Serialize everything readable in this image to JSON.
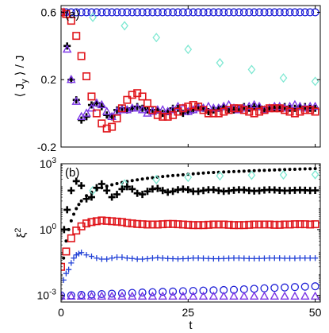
{
  "chart_data": [
    {
      "type": "scatter",
      "panel_label": "(a)",
      "xlim": [
        0,
        51
      ],
      "ylim": [
        -0.2,
        0.64
      ],
      "ylabel": "⟨ J_y ⟩ / J",
      "xlabel": "",
      "yticks": [
        -0.2,
        0.2,
        0.6
      ],
      "ytick_labels": [
        "-0.2",
        "0.2",
        "0.6"
      ],
      "xticks": [
        0,
        25,
        50
      ],
      "show_xtick_labels": false,
      "grid": false,
      "series": [
        {
          "marker": "circle",
          "color": "#1f1fd6",
          "x": [
            0,
            1,
            2,
            3,
            4,
            5,
            6,
            7,
            8,
            9,
            10,
            11,
            12,
            13,
            14,
            15,
            16,
            17,
            18,
            19,
            20,
            21,
            22,
            23,
            24,
            25,
            26,
            27,
            28,
            29,
            30,
            31,
            32,
            33,
            34,
            35,
            36,
            37,
            38,
            39,
            40,
            41,
            42,
            43,
            44,
            45,
            46,
            47,
            48,
            49,
            50
          ],
          "y": [
            0.6,
            0.6,
            0.6,
            0.6,
            0.6,
            0.6,
            0.6,
            0.6,
            0.6,
            0.6,
            0.6,
            0.6,
            0.6,
            0.6,
            0.6,
            0.6,
            0.6,
            0.6,
            0.6,
            0.6,
            0.6,
            0.6,
            0.6,
            0.6,
            0.6,
            0.6,
            0.6,
            0.6,
            0.6,
            0.6,
            0.6,
            0.6,
            0.6,
            0.6,
            0.6,
            0.6,
            0.6,
            0.6,
            0.6,
            0.6,
            0.6,
            0.6,
            0.6,
            0.6,
            0.6,
            0.6,
            0.6,
            0.6,
            0.6,
            0.6,
            0.6
          ]
        },
        {
          "marker": "diamond",
          "color": "#7ee8d2",
          "x": [
            0,
            6.25,
            12.5,
            18.75,
            25,
            31.25,
            37.5,
            43.75,
            50
          ],
          "y": [
            0.6,
            0.57,
            0.52,
            0.45,
            0.38,
            0.3,
            0.26,
            0.21,
            0.19
          ]
        },
        {
          "marker": "plus-bold",
          "color": "#000000",
          "x": [
            0.6,
            1.2,
            2,
            3,
            4,
            5,
            6,
            7,
            8,
            9,
            10,
            11,
            12,
            13,
            14,
            15,
            16,
            17,
            18,
            19,
            20,
            21,
            22,
            23,
            24,
            25,
            26,
            27,
            28,
            29,
            30,
            31,
            32,
            33,
            34,
            35,
            36,
            37,
            38,
            39,
            40,
            41,
            42,
            43,
            44,
            45,
            46,
            47,
            48,
            49,
            50
          ],
          "y": [
            0.6,
            0.4,
            0.2,
            0.08,
            -0.04,
            -0.02,
            0.05,
            0.06,
            0.04,
            -0.01,
            -0.02,
            0.02,
            0.03,
            0.02,
            0.03,
            0.04,
            0.03,
            0.02,
            0.02,
            0.02,
            0.0,
            0.01,
            0.03,
            0.03,
            0.0,
            0.01,
            0.02,
            0.04,
            0.03,
            0.01,
            0.02,
            0.03,
            0.04,
            0.02,
            0.02,
            0.03,
            0.04,
            0.03,
            0.04,
            0.04,
            0.02,
            0.03,
            0.03,
            0.03,
            0.04,
            0.03,
            0.03,
            0.04,
            0.04,
            0.03,
            0.03
          ]
        },
        {
          "marker": "triangle",
          "color": "#7b35e6",
          "x": [
            0.6,
            1.2,
            2,
            3,
            4,
            5,
            6,
            7,
            8,
            9,
            10,
            11,
            12,
            13,
            14,
            15,
            16,
            17,
            18,
            19,
            20,
            21,
            22,
            23,
            24,
            25,
            26,
            27,
            28,
            29,
            30,
            31,
            32,
            33,
            34,
            35,
            36,
            37,
            38,
            39,
            40,
            41,
            42,
            43,
            44,
            45,
            46,
            47,
            48,
            49,
            50
          ],
          "y": [
            0.6,
            0.38,
            0.2,
            0.07,
            -0.02,
            0.0,
            0.03,
            0.06,
            0.05,
            0.01,
            -0.02,
            0.01,
            0.02,
            0.02,
            0.03,
            0.03,
            0.02,
            0.0,
            0.01,
            0.02,
            0.02,
            0.01,
            0.02,
            0.04,
            0.03,
            0.01,
            0.02,
            0.03,
            0.03,
            0.04,
            0.03,
            0.03,
            0.04,
            0.05,
            0.03,
            0.02,
            0.03,
            0.04,
            0.05,
            0.04,
            0.02,
            0.03,
            0.04,
            0.04,
            0.03,
            0.04,
            0.05,
            0.04,
            0.03,
            0.04,
            0.04
          ]
        },
        {
          "marker": "square",
          "color": "#e0151b",
          "x": [
            0,
            1,
            2,
            3,
            4,
            5,
            6,
            7,
            8,
            9,
            10,
            11,
            12,
            13,
            14,
            15,
            16,
            17,
            18,
            19,
            20,
            21,
            22,
            23,
            24,
            25,
            26,
            27,
            28,
            29,
            30,
            31,
            32,
            33,
            34,
            35,
            36,
            37,
            38,
            39,
            40,
            41,
            42,
            43,
            44,
            45,
            46,
            47,
            48,
            49,
            50
          ],
          "y": [
            0.6,
            0.59,
            0.55,
            0.46,
            0.34,
            0.22,
            0.1,
            0.0,
            -0.06,
            -0.09,
            -0.08,
            -0.03,
            0.03,
            0.08,
            0.11,
            0.12,
            0.1,
            0.06,
            0.02,
            -0.01,
            -0.02,
            -0.02,
            -0.01,
            0.01,
            0.03,
            0.04,
            0.05,
            0.04,
            0.02,
            0.0,
            0.0,
            0.0,
            0.01,
            0.02,
            0.03,
            0.03,
            0.02,
            0.01,
            0.0,
            0.01,
            0.02,
            0.03,
            0.03,
            0.03,
            0.02,
            0.01,
            0.0,
            0.01,
            0.02,
            0.02,
            0.01
          ]
        }
      ]
    },
    {
      "type": "scatter",
      "panel_label": "(b)",
      "xlim": [
        0,
        51
      ],
      "yscale": "log",
      "ylim": [
        0.0005,
        1000
      ],
      "ylabel": "ξ²",
      "xlabel": "t",
      "yticks": [
        0.001,
        1,
        1000
      ],
      "ytick_labels": [
        "10^-3",
        "10^0",
        "10^3"
      ],
      "xticks": [
        0,
        25,
        50
      ],
      "xtick_labels": [
        "0",
        "25",
        "50"
      ],
      "grid": false,
      "series": [
        {
          "marker": "dot",
          "color": "#000000",
          "x": [
            0.5,
            1,
            1.5,
            2,
            2.5,
            3,
            3.5,
            4,
            5,
            6,
            7,
            8,
            9,
            10,
            11,
            12,
            13,
            14,
            15,
            16,
            17,
            18,
            19,
            20,
            21,
            22,
            23,
            24,
            25,
            26,
            27,
            28,
            29,
            30,
            31,
            32,
            33,
            34,
            35,
            36,
            37,
            38,
            39,
            40,
            41,
            42,
            43,
            44,
            45,
            46,
            47,
            48,
            49,
            50
          ],
          "y": [
            0.05,
            0.3,
            1.0,
            2.5,
            5,
            9,
            14,
            20,
            35,
            50,
            65,
            80,
            95,
            110,
            125,
            140,
            155,
            170,
            185,
            200,
            215,
            230,
            245,
            260,
            275,
            290,
            300,
            315,
            330,
            345,
            360,
            375,
            390,
            400,
            410,
            420,
            430,
            440,
            450,
            460,
            470,
            480,
            490,
            500,
            510,
            520,
            530,
            540,
            550,
            560,
            570,
            580,
            590,
            600
          ]
        },
        {
          "marker": "diamond",
          "color": "#7ee8d2",
          "x": [
            6.25,
            12.5,
            18.75,
            25,
            31.25,
            37.5,
            43.75,
            50
          ],
          "y": [
            60,
            120,
            190,
            240,
            280,
            300,
            310,
            320
          ]
        },
        {
          "marker": "plus-bold",
          "color": "#000000",
          "x": [
            0.6,
            1.2,
            2,
            3,
            4,
            5,
            6,
            7,
            8,
            9,
            10,
            11,
            12,
            13,
            14,
            15,
            16,
            17,
            18,
            19,
            20,
            21,
            22,
            23,
            24,
            25,
            26,
            27,
            28,
            29,
            30,
            31,
            32,
            33,
            34,
            35,
            36,
            37,
            38,
            39,
            40,
            41,
            42,
            43,
            44,
            45,
            46,
            47,
            48,
            49,
            50
          ],
          "y": [
            1.0,
            8,
            60,
            160,
            100,
            25,
            30,
            80,
            120,
            60,
            30,
            40,
            70,
            90,
            70,
            45,
            40,
            55,
            70,
            75,
            60,
            50,
            55,
            65,
            70,
            65,
            55,
            55,
            60,
            65,
            65,
            60,
            55,
            58,
            62,
            65,
            64,
            60,
            57,
            59,
            63,
            65,
            64,
            61,
            59,
            60,
            62,
            63,
            62,
            60,
            61
          ]
        },
        {
          "marker": "square",
          "color": "#e0151b",
          "x": [
            0,
            1,
            2,
            3,
            4,
            5,
            6,
            7,
            8,
            9,
            10,
            11,
            12,
            13,
            14,
            15,
            16,
            17,
            18,
            19,
            20,
            21,
            22,
            23,
            24,
            25,
            26,
            27,
            28,
            29,
            30,
            31,
            32,
            33,
            34,
            35,
            36,
            37,
            38,
            39,
            40,
            41,
            42,
            43,
            44,
            45,
            46,
            47,
            48,
            49,
            50
          ],
          "y": [
            0.02,
            0.1,
            0.4,
            0.9,
            1.4,
            1.9,
            2.2,
            2.4,
            2.6,
            2.5,
            2.4,
            2.3,
            2.2,
            2.0,
            1.9,
            1.8,
            1.75,
            1.7,
            1.7,
            1.7,
            1.75,
            1.8,
            1.8,
            1.75,
            1.7,
            1.65,
            1.6,
            1.6,
            1.6,
            1.65,
            1.7,
            1.7,
            1.7,
            1.65,
            1.6,
            1.6,
            1.6,
            1.65,
            1.7,
            1.7,
            1.7,
            1.7,
            1.65,
            1.65,
            1.7,
            1.7,
            1.75,
            1.75,
            1.75,
            1.7,
            1.75
          ]
        },
        {
          "marker": "plus",
          "color": "#1f3fd6",
          "x": [
            0.5,
            1,
            1.5,
            2,
            2.5,
            3,
            3.5,
            4,
            5,
            6,
            7,
            8,
            9,
            10,
            11,
            12,
            13,
            14,
            15,
            16,
            17,
            18,
            19,
            20,
            21,
            22,
            23,
            24,
            25,
            26,
            27,
            28,
            29,
            30,
            31,
            32,
            33,
            34,
            35,
            36,
            37,
            38,
            39,
            40,
            41,
            42,
            43,
            44,
            45,
            46,
            47,
            48,
            49,
            50
          ],
          "y": [
            0.005,
            0.01,
            0.015,
            0.03,
            0.05,
            0.07,
            0.08,
            0.09,
            0.07,
            0.06,
            0.05,
            0.045,
            0.045,
            0.05,
            0.055,
            0.055,
            0.05,
            0.048,
            0.045,
            0.045,
            0.047,
            0.05,
            0.052,
            0.05,
            0.048,
            0.047,
            0.046,
            0.047,
            0.048,
            0.05,
            0.05,
            0.049,
            0.048,
            0.047,
            0.047,
            0.048,
            0.049,
            0.05,
            0.05,
            0.049,
            0.048,
            0.048,
            0.048,
            0.049,
            0.05,
            0.05,
            0.05,
            0.049,
            0.049,
            0.049,
            0.05,
            0.05,
            0.05,
            0.05
          ]
        },
        {
          "marker": "circle",
          "color": "#1f1fd6",
          "x": [
            0,
            2,
            4,
            6,
            8,
            10,
            12,
            14,
            16,
            18,
            20,
            22,
            24,
            26,
            28,
            30,
            32,
            34,
            36,
            38,
            40,
            42,
            44,
            46,
            48,
            50
          ],
          "y": [
            0.001,
            0.001,
            0.00105,
            0.0011,
            0.00115,
            0.0012,
            0.00125,
            0.0013,
            0.00135,
            0.0014,
            0.00145,
            0.0015,
            0.00155,
            0.0016,
            0.00165,
            0.0017,
            0.00175,
            0.0018,
            0.0019,
            0.002,
            0.0021,
            0.0022,
            0.0023,
            0.0024,
            0.0025,
            0.0026
          ]
        },
        {
          "marker": "triangle",
          "color": "#7b35e6",
          "x": [
            0,
            2,
            4,
            6,
            8,
            10,
            12,
            14,
            16,
            18,
            20,
            22,
            24,
            26,
            28,
            30,
            32,
            34,
            36,
            38,
            40,
            42,
            44,
            46,
            48,
            50
          ],
          "y": [
            0.0009,
            0.0009,
            0.0009,
            0.0009,
            0.0009,
            0.0009,
            0.0009,
            0.0009,
            0.0009,
            0.0009,
            0.0009,
            0.0009,
            0.0009,
            0.0009,
            0.0009,
            0.0009,
            0.0009,
            0.0009,
            0.0009,
            0.0009,
            0.0009,
            0.0009,
            0.0009,
            0.0009,
            0.0009,
            0.0009
          ]
        }
      ]
    }
  ]
}
